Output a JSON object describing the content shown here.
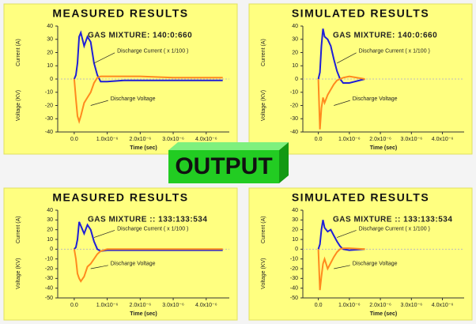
{
  "banner": "OUTPUT",
  "chart_data": [
    {
      "type": "line",
      "title": "MEASURED RESULTS",
      "annotation": "GAS MIXTURE: 140:0:660",
      "annotation_color": "#1a1acc",
      "current_label": "Discharge Current ( x 1/100 )",
      "voltage_label": "Discharge Voltage",
      "ylabel_top": "Current (A)",
      "ylabel_bottom": "Voltage (KV)",
      "xlabel": "Time (sec)",
      "x": [
        0,
        5e-08,
        1e-07,
        1.5e-07,
        2e-07,
        3e-07,
        4e-07,
        5e-07,
        6e-07,
        7e-07,
        8e-07,
        1e-06,
        1.5e-06,
        2e-06,
        3e-06,
        4e-06,
        4.5e-06
      ],
      "series": [
        {
          "name": "Discharge Current",
          "color": "#1f1fd6",
          "values": [
            0,
            3,
            12,
            32,
            35,
            25,
            32,
            28,
            12,
            3,
            -2,
            -2,
            -1,
            -1,
            -1,
            -1,
            -1
          ]
        },
        {
          "name": "Discharge Voltage",
          "color": "#ff8a1e",
          "values": [
            0,
            -15,
            -28,
            -32,
            -28,
            -18,
            -14,
            -10,
            -3,
            1,
            2,
            2,
            2,
            2,
            1,
            1,
            1
          ]
        }
      ],
      "xlim": [
        -5e-07,
        4.7e-06
      ],
      "xticks": [
        {
          "value": 0,
          "label": "0.0"
        },
        {
          "value": 1e-06,
          "label": "1.0x10⁻⁶"
        },
        {
          "value": 2e-06,
          "label": "2.0x10⁻⁶"
        },
        {
          "value": 3e-06,
          "label": "3.0x10⁻⁶"
        },
        {
          "value": 4e-06,
          "label": "4.0x10⁻⁶"
        }
      ],
      "ylim": [
        -40,
        40
      ],
      "yticks": [
        40,
        30,
        20,
        10,
        0,
        -10,
        -20,
        -30,
        -40
      ]
    },
    {
      "type": "line",
      "title": "SIMULATED RESULTS",
      "annotation": "GAS MIXTURE: 140:0:660",
      "annotation_color": "#1a1acc",
      "current_label": "Discharge Current ( x 1/100 )",
      "voltage_label": "Discharge Voltage",
      "ylabel_top": "Current (A)",
      "ylabel_bottom": "Voltage (KV)",
      "xlabel": "Time (sec)",
      "x": [
        0,
        5e-08,
        1e-07,
        1.5e-07,
        2e-07,
        3e-07,
        4e-07,
        5e-07,
        6e-07,
        7e-07,
        8e-07,
        1e-06,
        1.5e-06,
        2e-06,
        3e-06,
        4e-06,
        4.5e-06
      ],
      "series": [
        {
          "name": "Discharge Current",
          "color": "#1f1fd6",
          "values": [
            0,
            5,
            25,
            38,
            32,
            30,
            25,
            15,
            6,
            0,
            -3,
            -3,
            0,
            null,
            null,
            null,
            null
          ]
        },
        {
          "name": "Discharge Voltage",
          "color": "#ff8a1e",
          "values": [
            0,
            -38,
            -22,
            -14,
            -18,
            -12,
            -8,
            -4,
            -1,
            0,
            1,
            2,
            0,
            null,
            null,
            null,
            null
          ]
        }
      ],
      "xlim": [
        -5e-07,
        4.7e-06
      ],
      "xticks": [
        {
          "value": 0,
          "label": "0.0"
        },
        {
          "value": 1e-06,
          "label": "1.0x10⁻⁶"
        },
        {
          "value": 2e-06,
          "label": "2.0x10⁻⁶"
        },
        {
          "value": 3e-06,
          "label": "3.0x10⁻⁶"
        },
        {
          "value": 4e-06,
          "label": "4.0x10⁻⁶"
        }
      ],
      "ylim": [
        -40,
        40
      ],
      "yticks": [
        40,
        30,
        20,
        10,
        0,
        -10,
        -20,
        -30,
        -40
      ]
    },
    {
      "type": "line",
      "title": "MEASURED RESULTS",
      "annotation": "GAS MIXTURE :: 133:133:534",
      "annotation_color": "#e81a1a",
      "current_label": "Discharge Current ( x 1/100 )",
      "voltage_label": "Discharge Voltage",
      "ylabel_top": "Current (A)",
      "ylabel_bottom": "Voltage (KV)",
      "xlabel": "Time (sec)",
      "x": [
        0,
        5e-08,
        1e-07,
        1.5e-07,
        2e-07,
        3e-07,
        4e-07,
        5e-07,
        6e-07,
        7e-07,
        8e-07,
        1e-06,
        1.5e-06,
        2e-06,
        3e-06,
        4e-06,
        4.5e-06
      ],
      "series": [
        {
          "name": "Discharge Current",
          "color": "#1f1fd6",
          "values": [
            0,
            2,
            10,
            28,
            24,
            16,
            25,
            20,
            8,
            0,
            -2,
            -1,
            -1,
            -1,
            -1,
            -1,
            -1
          ]
        },
        {
          "name": "Discharge Voltage",
          "color": "#ff8a1e",
          "values": [
            0,
            -10,
            -25,
            -30,
            -33,
            -28,
            -18,
            -15,
            -10,
            -5,
            -2,
            0,
            0,
            0,
            0,
            0,
            0
          ]
        }
      ],
      "xlim": [
        -5e-07,
        4.7e-06
      ],
      "xticks": [
        {
          "value": 0,
          "label": "0.0"
        },
        {
          "value": 1e-06,
          "label": "1.0x10⁻⁶"
        },
        {
          "value": 2e-06,
          "label": "2.0x10⁻⁶"
        },
        {
          "value": 3e-06,
          "label": "3.0x10⁻⁶"
        },
        {
          "value": 4e-06,
          "label": "4.0x10⁻⁶"
        }
      ],
      "ylim": [
        -50,
        40
      ],
      "yticks": [
        40,
        30,
        20,
        10,
        0,
        -10,
        -20,
        -30,
        -40,
        -50
      ]
    },
    {
      "type": "line",
      "title": "SIMULATED RESULTS",
      "annotation": "GAS MIXTURE :: 133:133:534",
      "annotation_color": "#e81a1a",
      "current_label": "Discharge Current ( x 1/100 )",
      "voltage_label": "Discharge Voltage",
      "ylabel_top": "Current (A)",
      "ylabel_bottom": "Voltage (KV)",
      "xlabel": "Time (sec)",
      "x": [
        0,
        5e-08,
        1e-07,
        1.5e-07,
        2e-07,
        3e-07,
        4e-07,
        5e-07,
        6e-07,
        7e-07,
        8e-07,
        1e-06,
        1.5e-06,
        2e-06,
        3e-06,
        4e-06,
        4.5e-06
      ],
      "series": [
        {
          "name": "Discharge Current",
          "color": "#1f1fd6",
          "values": [
            0,
            5,
            20,
            30,
            22,
            18,
            20,
            14,
            8,
            3,
            0,
            -1,
            0,
            null,
            null,
            null,
            null
          ]
        },
        {
          "name": "Discharge Voltage",
          "color": "#ff8a1e",
          "values": [
            0,
            -42,
            -28,
            -15,
            -10,
            -20,
            -14,
            -8,
            -3,
            0,
            1,
            1,
            0,
            null,
            null,
            null,
            null
          ]
        }
      ],
      "xlim": [
        -5e-07,
        4.7e-06
      ],
      "xticks": [
        {
          "value": 0,
          "label": "0.0"
        },
        {
          "value": 1e-06,
          "label": "1.0x10⁻⁶"
        },
        {
          "value": 2e-06,
          "label": "2.0x10⁻⁶"
        },
        {
          "value": 3e-06,
          "label": "3.0x10⁻⁶"
        },
        {
          "value": 4e-06,
          "label": "4.0x10⁻⁶"
        }
      ],
      "ylim": [
        -50,
        40
      ],
      "yticks": [
        40,
        30,
        20,
        10,
        0,
        -10,
        -20,
        -30,
        -40,
        -50
      ]
    }
  ]
}
